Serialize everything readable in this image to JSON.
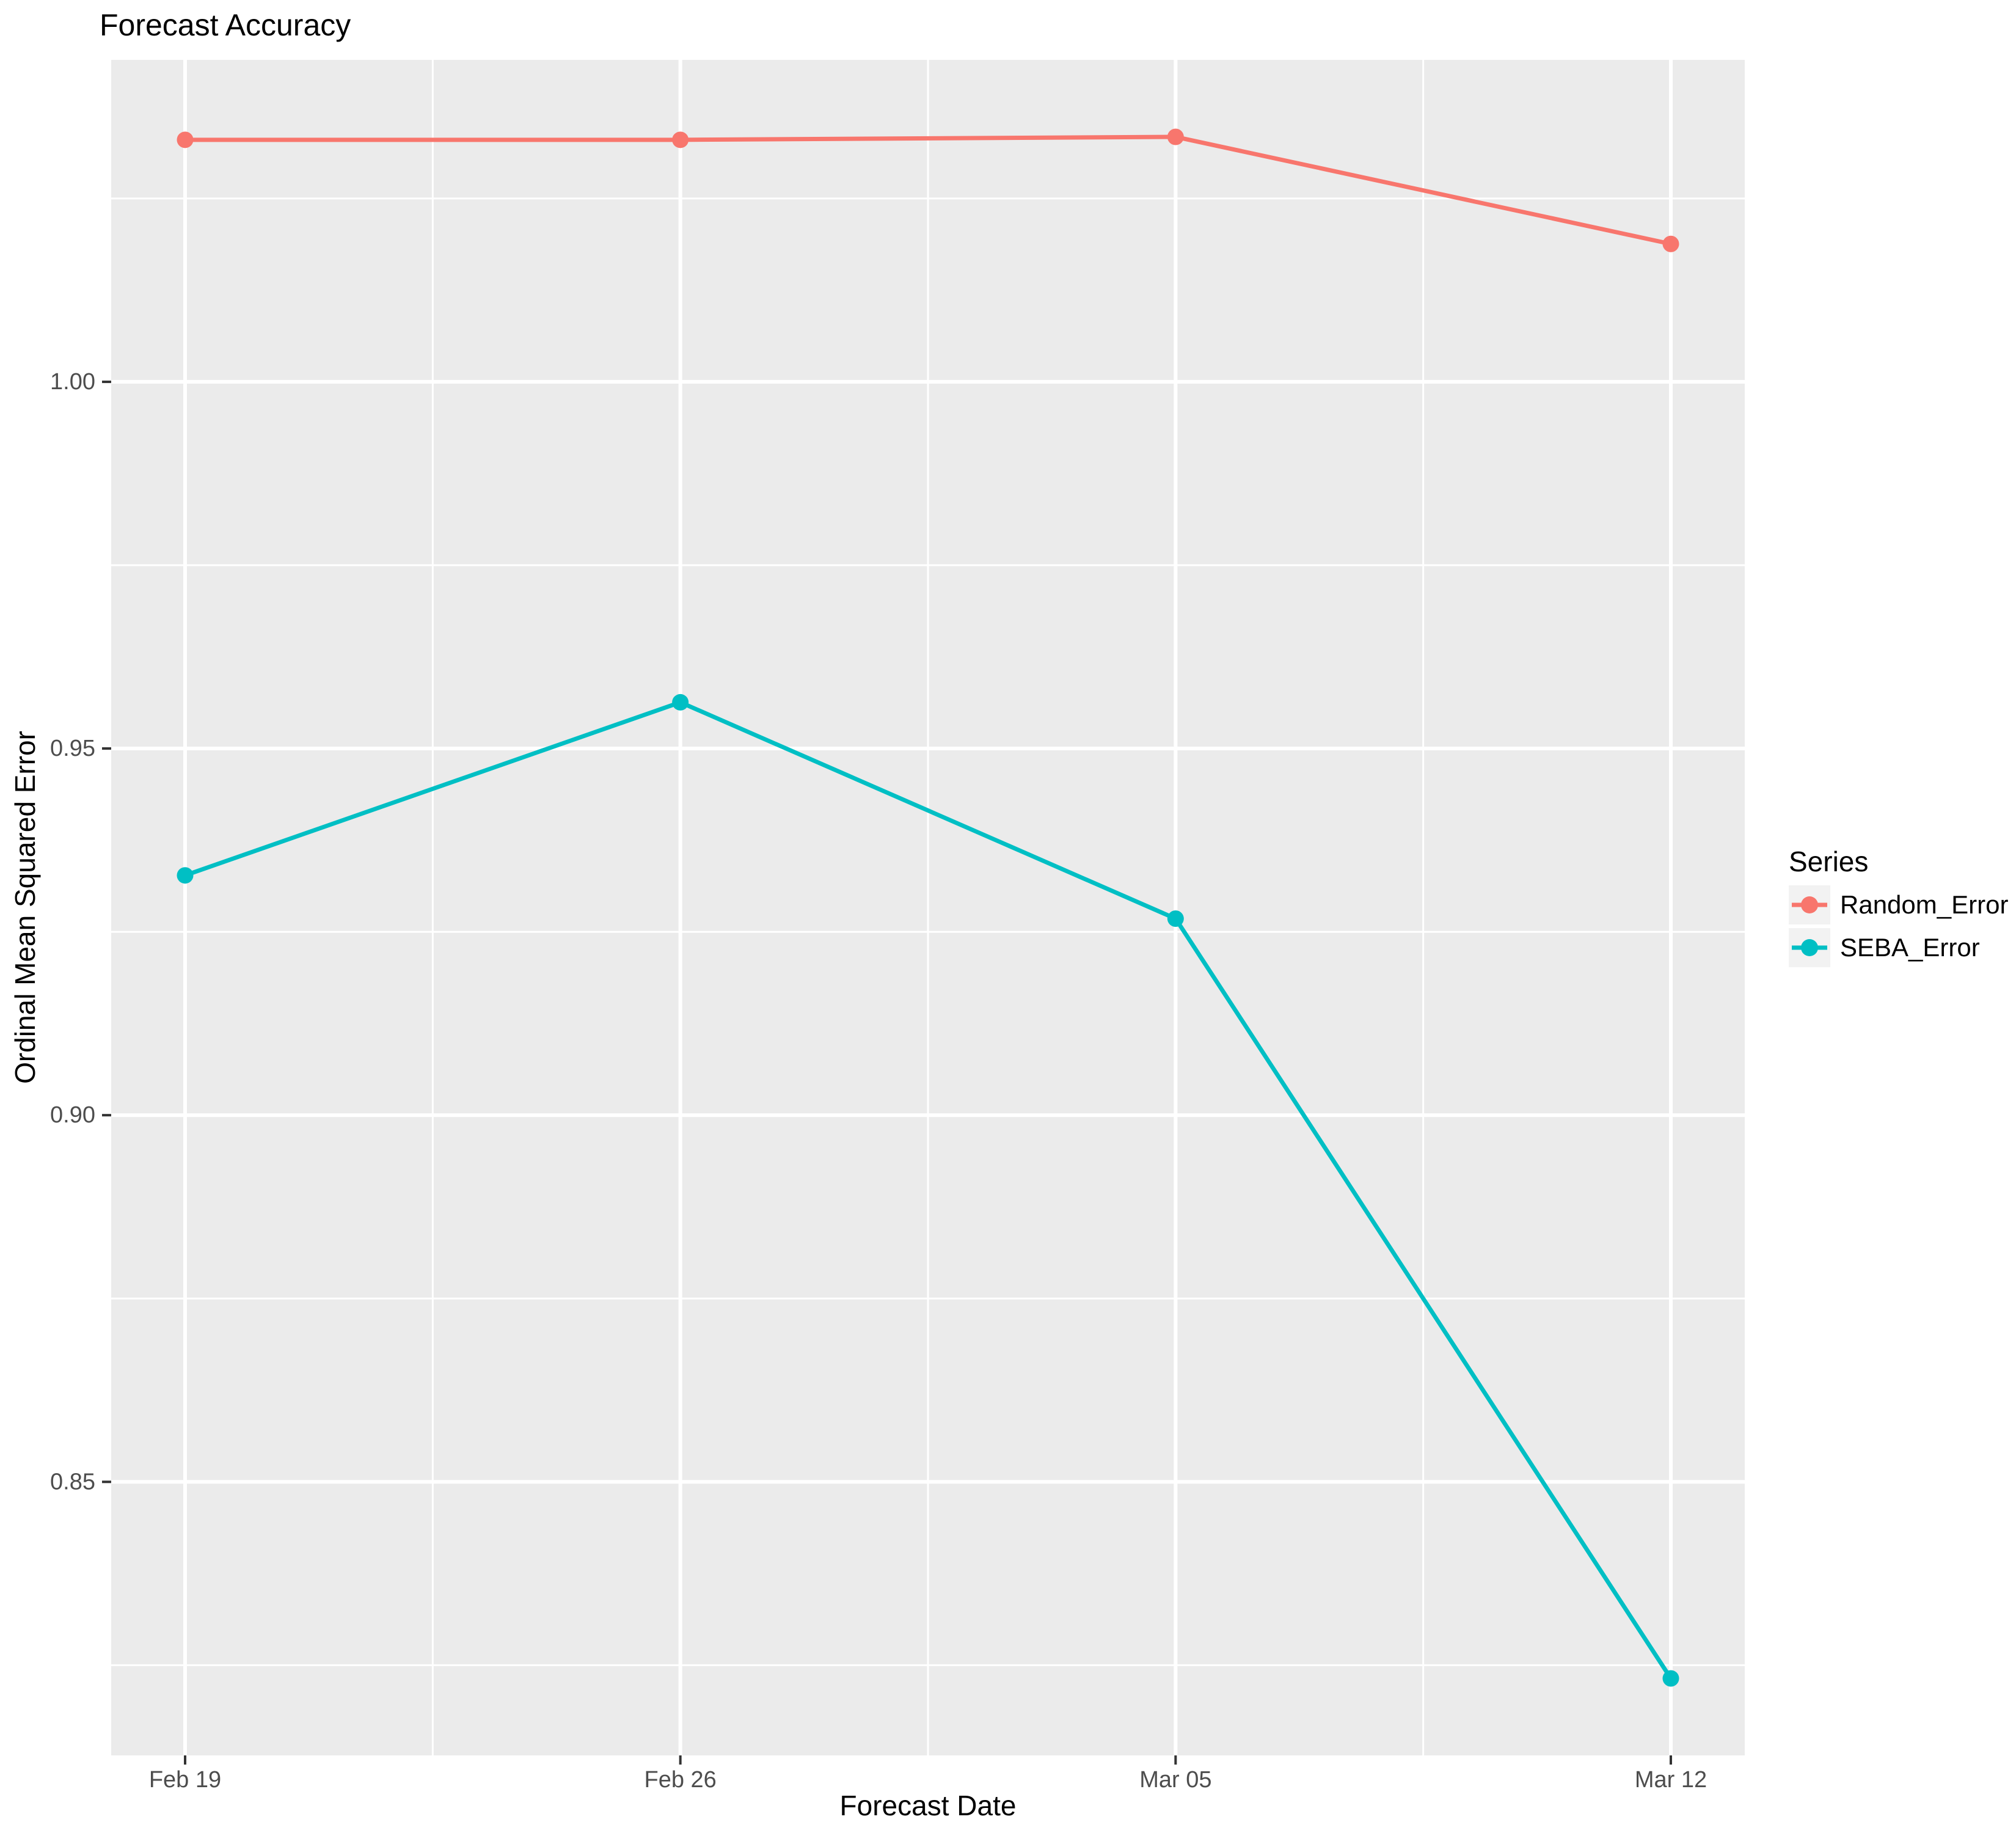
{
  "chart_data": {
    "type": "line",
    "title": "Forecast Accuracy",
    "xlabel": "Forecast Date",
    "ylabel": "Ordinal Mean Squared Error",
    "categories": [
      "Feb 19",
      "Feb 26",
      "Mar 05",
      "Mar 12"
    ],
    "series": [
      {
        "name": "Random_Error",
        "color": "#F8766D",
        "values": [
          1.033,
          1.033,
          1.0334,
          1.0188
        ]
      },
      {
        "name": "SEBA_Error",
        "color": "#00BFC4",
        "values": [
          0.9327,
          0.9563,
          0.9268,
          0.8232
        ]
      }
    ],
    "y_ticks": [
      "0.85",
      "0.90",
      "0.95",
      "1.00"
    ],
    "y_tick_values": [
      0.85,
      0.9,
      0.95,
      1.0
    ],
    "y_minor_values": [
      0.825,
      0.875,
      0.925,
      0.975,
      1.025
    ],
    "ylim": [
      0.8127,
      1.0439
    ],
    "grid": true,
    "legend": {
      "title": "Series",
      "position": "right"
    },
    "colors": {
      "panel_bg": "#EBEBEB",
      "grid": "#FFFFFF",
      "axis_text": "#4D4D4D",
      "tick_mark": "#333333",
      "title_text": "#000000"
    }
  }
}
